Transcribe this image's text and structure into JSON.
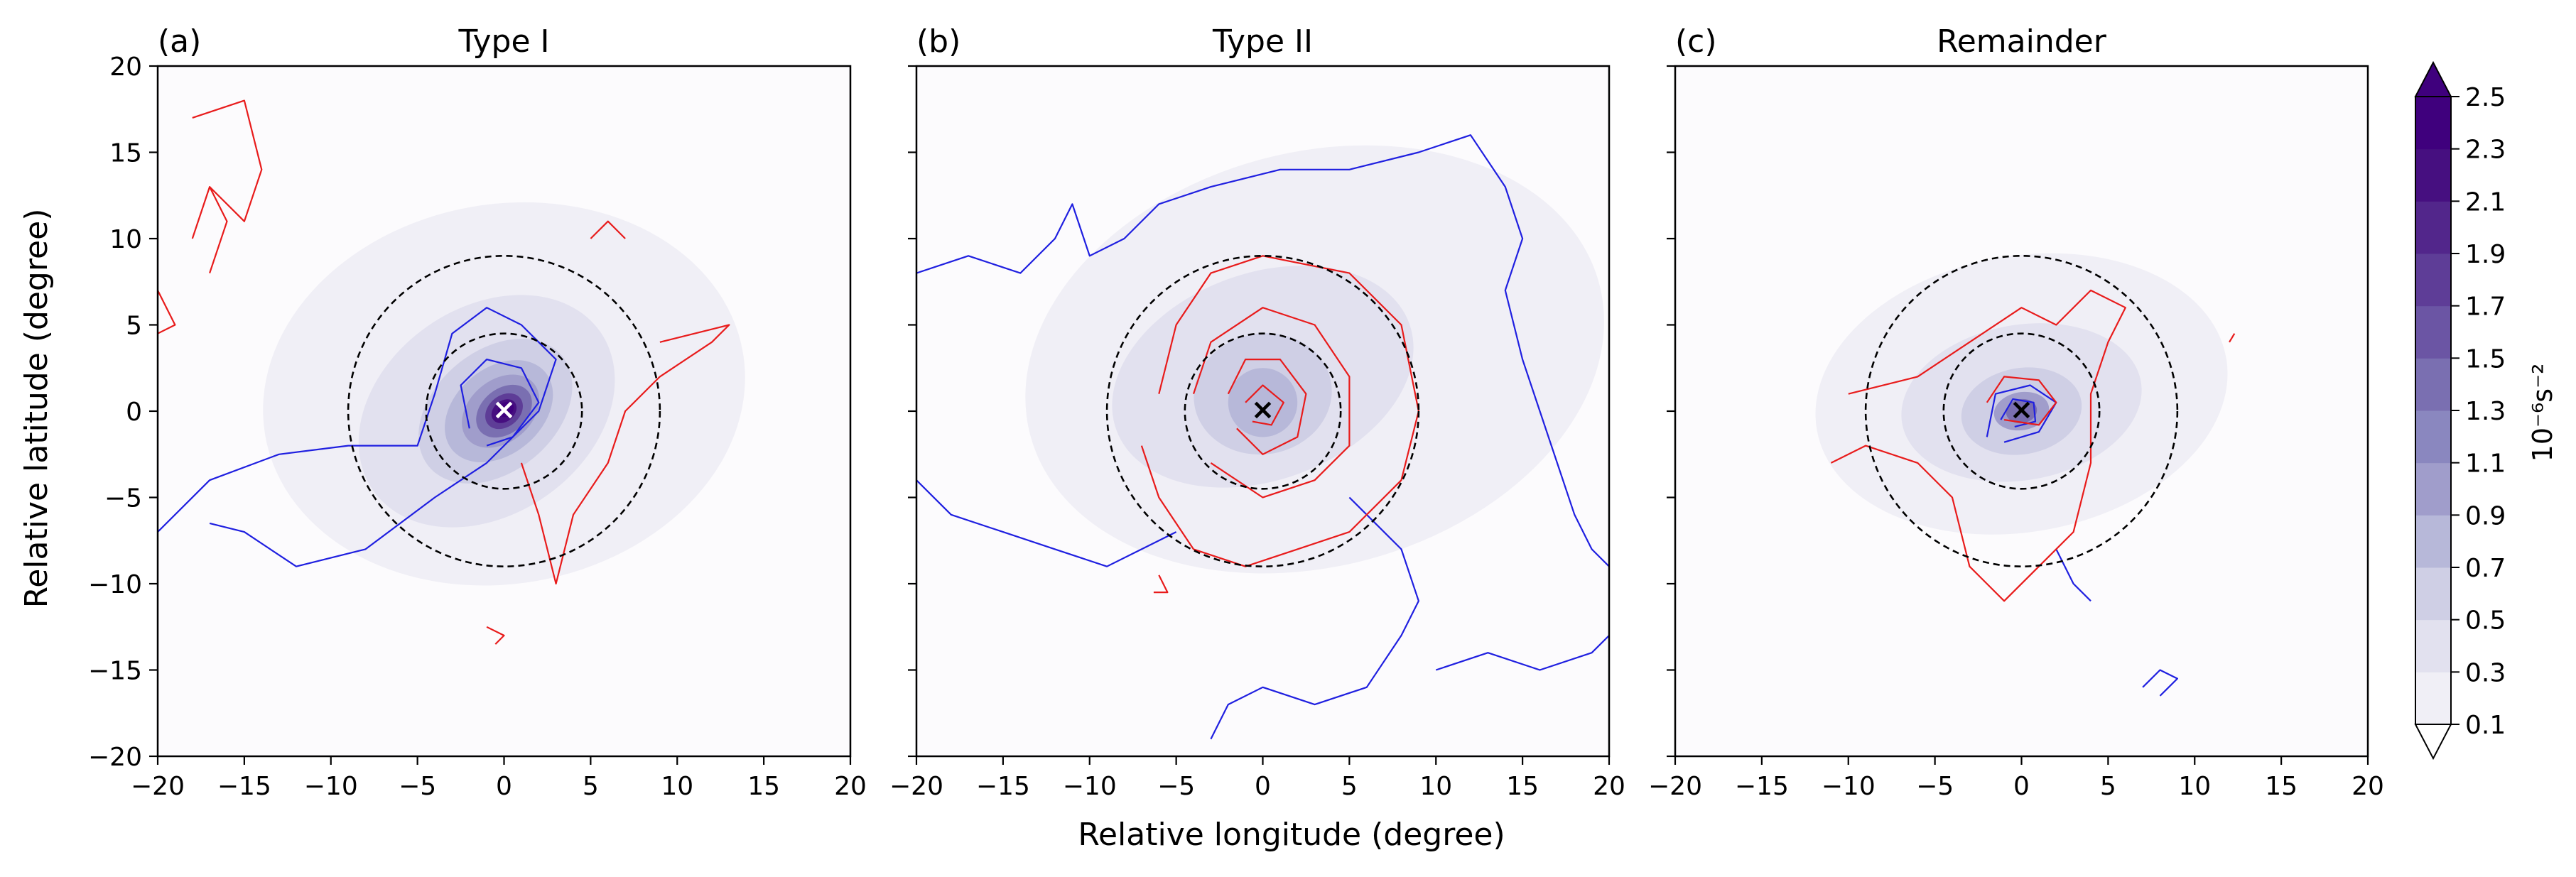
{
  "figure": {
    "xlabel": "Relative longitude (degree)",
    "ylabel": "Relative latitude (degree)"
  },
  "colorbar": {
    "label": "10⁻⁶s⁻²",
    "levels": [
      0.1,
      0.3,
      0.5,
      0.7,
      0.9,
      1.1,
      1.3,
      1.5,
      1.7,
      1.9,
      2.1,
      2.3,
      2.5
    ],
    "tick_labels": [
      "0.1",
      "0.3",
      "0.5",
      "0.7",
      "0.9",
      "1.1",
      "1.3",
      "1.5",
      "1.7",
      "1.9",
      "2.1",
      "2.3",
      "2.5"
    ],
    "colors": [
      "#fcfbfd",
      "#f0eff6",
      "#e2e1ef",
      "#cfcfe5",
      "#b7b8d9",
      "#a09dcb",
      "#8a87bf",
      "#7a6fb1",
      "#6b55a4",
      "#5e3d97",
      "#52268b",
      "#460f80",
      "#3f007d"
    ],
    "extend": "both"
  },
  "chart_data": [
    {
      "type": "heatmap",
      "panel_label": "(a)",
      "title": "Type I",
      "xlim": [
        -20,
        20
      ],
      "ylim": [
        -20,
        20
      ],
      "xticks": [
        -20,
        -15,
        -10,
        -5,
        0,
        5,
        10,
        15,
        20
      ],
      "yticks": [
        -20,
        -15,
        -10,
        -5,
        0,
        5,
        10,
        15,
        20
      ],
      "center_marker": {
        "x": 0,
        "y": 0,
        "symbol": "×",
        "color": "#ffffff"
      },
      "dashed_circles_radius": [
        4.5,
        9
      ],
      "filled_field": [
        {
          "level": 0.3,
          "cx": 0,
          "cy": 1,
          "rx": 14,
          "ry": 11,
          "rot": -10
        },
        {
          "level": 0.5,
          "cx": -1,
          "cy": 0,
          "rx": 8,
          "ry": 6,
          "rot": -35
        },
        {
          "level": 0.7,
          "cx": -0.5,
          "cy": 0,
          "rx": 5,
          "ry": 3.5,
          "rot": -40
        },
        {
          "level": 0.9,
          "cx": -0.3,
          "cy": 0,
          "rx": 3.5,
          "ry": 2.5,
          "rot": -40
        },
        {
          "level": 1.1,
          "cx": -0.2,
          "cy": 0,
          "rx": 2.5,
          "ry": 1.8,
          "rot": -40
        },
        {
          "level": 1.5,
          "cx": 0,
          "cy": 0,
          "rx": 1.8,
          "ry": 1.3,
          "rot": -40
        },
        {
          "level": 1.9,
          "cx": 0,
          "cy": 0,
          "rx": 1.2,
          "ry": 0.9,
          "rot": -40
        },
        {
          "level": 2.3,
          "cx": 0,
          "cy": 0,
          "rx": 0.8,
          "ry": 0.6,
          "rot": -40
        },
        {
          "level": 2.5,
          "cx": 0.1,
          "cy": 0.1,
          "rx": 0.5,
          "ry": 0.4,
          "rot": -40
        }
      ],
      "blue_contours": [
        [
          [
            -20,
            -7
          ],
          [
            -17,
            -4
          ],
          [
            -13,
            -2.5
          ],
          [
            -9,
            -2
          ],
          [
            -5,
            -2
          ],
          [
            -4,
            1
          ],
          [
            -3,
            4.5
          ],
          [
            -1,
            6
          ],
          [
            1,
            5
          ],
          [
            3,
            3
          ],
          [
            2,
            0
          ],
          [
            -1,
            -3
          ],
          [
            -4,
            -5
          ],
          [
            -8,
            -8
          ],
          [
            -12,
            -9
          ],
          [
            -15,
            -7
          ],
          [
            -17,
            -6.5
          ]
        ],
        [
          [
            -2,
            -1
          ],
          [
            -2.5,
            1.5
          ],
          [
            -1,
            3
          ],
          [
            1,
            2.5
          ],
          [
            2,
            0.5
          ],
          [
            0.5,
            -1.5
          ],
          [
            -1,
            -2
          ]
        ]
      ],
      "red_contours": [
        [
          [
            -18,
            17
          ],
          [
            -15,
            18
          ],
          [
            -14,
            14
          ],
          [
            -15,
            11
          ],
          [
            -17,
            13
          ]
        ],
        [
          [
            -17,
            8
          ],
          [
            -16,
            11
          ],
          [
            -17,
            13
          ],
          [
            -18,
            10
          ]
        ],
        [
          [
            -20,
            7
          ],
          [
            -19,
            5
          ],
          [
            -20,
            4.5
          ]
        ],
        [
          [
            1,
            -3
          ],
          [
            2,
            -6
          ],
          [
            3,
            -10
          ],
          [
            4,
            -6
          ],
          [
            6,
            -3
          ],
          [
            7,
            0
          ],
          [
            9,
            2
          ],
          [
            12,
            4
          ],
          [
            13,
            5
          ],
          [
            11,
            4.5
          ],
          [
            9,
            4
          ]
        ],
        [
          [
            5,
            10
          ],
          [
            6,
            11
          ],
          [
            7,
            10
          ]
        ],
        [
          [
            -1,
            -12.5
          ],
          [
            0,
            -13
          ],
          [
            -0.5,
            -13.5
          ]
        ]
      ]
    },
    {
      "type": "heatmap",
      "panel_label": "(b)",
      "title": "Type II",
      "xlim": [
        -20,
        20
      ],
      "ylim": [
        -20,
        20
      ],
      "xticks": [
        -20,
        -15,
        -10,
        -5,
        0,
        5,
        10,
        15,
        20
      ],
      "yticks": [
        -20,
        -15,
        -10,
        -5,
        0,
        5,
        10,
        15,
        20
      ],
      "center_marker": {
        "x": 0,
        "y": 0,
        "symbol": "×",
        "color": "#000000"
      },
      "dashed_circles_radius": [
        4.5,
        9
      ],
      "filled_field": [
        {
          "level": 0.3,
          "cx": 3,
          "cy": 3,
          "rx": 17,
          "ry": 12,
          "rot": -15
        },
        {
          "level": 0.5,
          "cx": 0,
          "cy": 2,
          "rx": 9,
          "ry": 6,
          "rot": -20
        },
        {
          "level": 0.7,
          "cx": 0,
          "cy": 1,
          "rx": 4,
          "ry": 3.5,
          "rot": -10
        },
        {
          "level": 0.9,
          "cx": 0,
          "cy": 0.5,
          "rx": 2,
          "ry": 2,
          "rot": 0
        }
      ],
      "blue_contours": [
        [
          [
            -20,
            8
          ],
          [
            -17,
            9
          ],
          [
            -14,
            8
          ],
          [
            -12,
            10
          ],
          [
            -11,
            12
          ],
          [
            -10,
            9
          ],
          [
            -8,
            10
          ],
          [
            -6,
            12
          ],
          [
            -3,
            13
          ],
          [
            1,
            14
          ],
          [
            5,
            14
          ],
          [
            9,
            15
          ],
          [
            12,
            16
          ],
          [
            14,
            13
          ],
          [
            15,
            10
          ],
          [
            14,
            7
          ],
          [
            15,
            3
          ],
          [
            16,
            0
          ],
          [
            17,
            -3
          ],
          [
            18,
            -6
          ],
          [
            19,
            -8
          ],
          [
            20,
            -9
          ]
        ],
        [
          [
            -20,
            -4
          ],
          [
            -18,
            -6
          ],
          [
            -15,
            -7
          ],
          [
            -12,
            -8
          ],
          [
            -9,
            -9
          ],
          [
            -7,
            -8
          ],
          [
            -5,
            -7
          ]
        ],
        [
          [
            5,
            -5
          ],
          [
            8,
            -8
          ],
          [
            9,
            -11
          ],
          [
            8,
            -13
          ],
          [
            6,
            -16
          ],
          [
            3,
            -17
          ],
          [
            0,
            -16
          ],
          [
            -2,
            -17
          ],
          [
            -3,
            -19
          ]
        ],
        [
          [
            10,
            -15
          ],
          [
            13,
            -14
          ],
          [
            16,
            -15
          ],
          [
            19,
            -14
          ],
          [
            20,
            -13
          ]
        ]
      ],
      "red_contours": [
        [
          [
            -6,
            1
          ],
          [
            -5,
            5
          ],
          [
            -3,
            8
          ],
          [
            0,
            9
          ],
          [
            5,
            8
          ],
          [
            8,
            5
          ],
          [
            9,
            0
          ],
          [
            8,
            -4
          ],
          [
            5,
            -7
          ],
          [
            2,
            -8
          ],
          [
            -1,
            -9
          ],
          [
            -4,
            -8
          ],
          [
            -6,
            -5
          ],
          [
            -7,
            -2
          ]
        ],
        [
          [
            -4,
            1
          ],
          [
            -3,
            4
          ],
          [
            0,
            6
          ],
          [
            3,
            5
          ],
          [
            5,
            2
          ],
          [
            5,
            -2
          ],
          [
            3,
            -4
          ],
          [
            0,
            -5
          ],
          [
            -3,
            -3
          ]
        ],
        [
          [
            -2,
            1
          ],
          [
            -1,
            3
          ],
          [
            1,
            3
          ],
          [
            2.5,
            1
          ],
          [
            2,
            -1.5
          ],
          [
            0,
            -2.5
          ],
          [
            -1.5,
            -1
          ]
        ],
        [
          [
            -1,
            0.5
          ],
          [
            0,
            1.5
          ],
          [
            1.2,
            0.5
          ],
          [
            0.5,
            -0.8
          ],
          [
            -0.6,
            -0.6
          ]
        ],
        [
          [
            -6,
            -9.5
          ],
          [
            -5.5,
            -10.5
          ],
          [
            -6.3,
            -10.5
          ]
        ]
      ]
    },
    {
      "type": "heatmap",
      "panel_label": "(c)",
      "title": "Remainder",
      "xlim": [
        -20,
        20
      ],
      "ylim": [
        -20,
        20
      ],
      "xticks": [
        -20,
        -15,
        -10,
        -5,
        0,
        5,
        10,
        15,
        20
      ],
      "yticks": [
        -20,
        -15,
        -10,
        -5,
        0,
        5,
        10,
        15,
        20
      ],
      "center_marker": {
        "x": 0,
        "y": 0,
        "symbol": "×",
        "color": "#000000"
      },
      "dashed_circles_radius": [
        4.5,
        9
      ],
      "filled_field": [
        {
          "level": 0.3,
          "cx": 0,
          "cy": 1,
          "rx": 12,
          "ry": 8,
          "rot": -10
        },
        {
          "level": 0.5,
          "cx": 0,
          "cy": 0.5,
          "rx": 7,
          "ry": 4.5,
          "rot": -10
        },
        {
          "level": 0.7,
          "cx": 0,
          "cy": 0,
          "rx": 3.5,
          "ry": 2.5,
          "rot": -10
        },
        {
          "level": 1.1,
          "cx": 0,
          "cy": 0,
          "rx": 1.6,
          "ry": 1.1,
          "rot": -10
        },
        {
          "level": 1.5,
          "cx": 0,
          "cy": 0,
          "rx": 0.9,
          "ry": 0.7,
          "rot": -10
        }
      ],
      "blue_contours": [
        [
          [
            -2,
            -1.5
          ],
          [
            -1.5,
            1
          ],
          [
            0.5,
            1.5
          ],
          [
            2,
            0.5
          ],
          [
            1,
            -1.2
          ],
          [
            -1,
            -1.8
          ]
        ],
        [
          [
            -1.2,
            -0.5
          ],
          [
            -0.5,
            0.7
          ],
          [
            0.7,
            0.5
          ],
          [
            0.8,
            -0.6
          ],
          [
            -0.4,
            -0.9
          ]
        ],
        [
          [
            7,
            -16
          ],
          [
            8,
            -15
          ],
          [
            9,
            -15.5
          ],
          [
            8,
            -16.5
          ]
        ],
        [
          [
            2,
            -8
          ],
          [
            3,
            -10
          ],
          [
            4,
            -11
          ]
        ]
      ],
      "red_contours": [
        [
          [
            -10,
            1
          ],
          [
            -6,
            2
          ],
          [
            -3,
            4
          ],
          [
            0,
            6
          ],
          [
            2,
            5
          ],
          [
            4,
            7
          ],
          [
            6,
            6
          ],
          [
            5,
            4
          ],
          [
            4,
            1
          ],
          [
            4,
            -3
          ],
          [
            3,
            -7
          ],
          [
            1,
            -9
          ],
          [
            -1,
            -11
          ],
          [
            -3,
            -9
          ],
          [
            -4,
            -5
          ],
          [
            -6,
            -3
          ],
          [
            -9,
            -2
          ],
          [
            -11,
            -3
          ]
        ],
        [
          [
            -2,
            0.5
          ],
          [
            -1,
            2
          ],
          [
            1,
            1.8
          ],
          [
            2,
            0.5
          ],
          [
            1,
            -0.8
          ],
          [
            -1,
            -0.5
          ]
        ],
        [
          [
            12,
            4
          ],
          [
            12.3,
            4.5
          ]
        ]
      ]
    }
  ]
}
